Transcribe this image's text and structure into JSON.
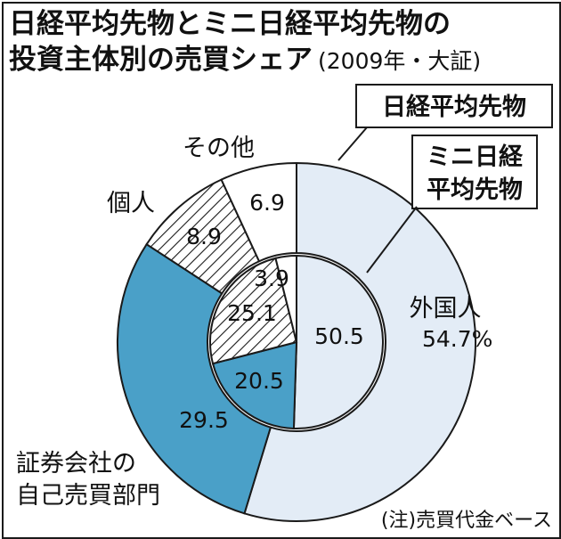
{
  "title": {
    "line1": "日経平均先物とミニ日経平均先物の",
    "line2": "投資主体別の売買シェア",
    "suffix": "(2009年・大証)"
  },
  "callouts": {
    "outer": "日経平均先物",
    "inner_line1": "ミニ日経",
    "inner_line2": "平均先物"
  },
  "note": "(注)売買代金ベース",
  "colors": {
    "foreign": "#e3ecf6",
    "securities": "#4aa0c8",
    "individual": "hatch",
    "other": "#ffffff",
    "outline": "#1a1a1a"
  },
  "chart_data": {
    "type": "pie",
    "subtype": "nested-donut",
    "unit": "%",
    "categories": [
      "外国人",
      "証券会社の自己売買部門",
      "個人",
      "その他"
    ],
    "category_label_lines": [
      [
        "外国人"
      ],
      [
        "証券会社の",
        "自己売買部門"
      ],
      [
        "個人"
      ],
      [
        "その他"
      ]
    ],
    "series": [
      {
        "name": "日経平均先物",
        "ring": "outer",
        "values": [
          54.7,
          29.5,
          8.9,
          6.9
        ],
        "labels": [
          "54.7%",
          "29.5",
          "8.9",
          "6.9"
        ]
      },
      {
        "name": "ミニ日経平均先物",
        "ring": "inner",
        "values": [
          50.5,
          20.5,
          25.1,
          3.9
        ],
        "labels": [
          "50.5",
          "20.5",
          "25.1",
          "3.9"
        ]
      }
    ]
  }
}
